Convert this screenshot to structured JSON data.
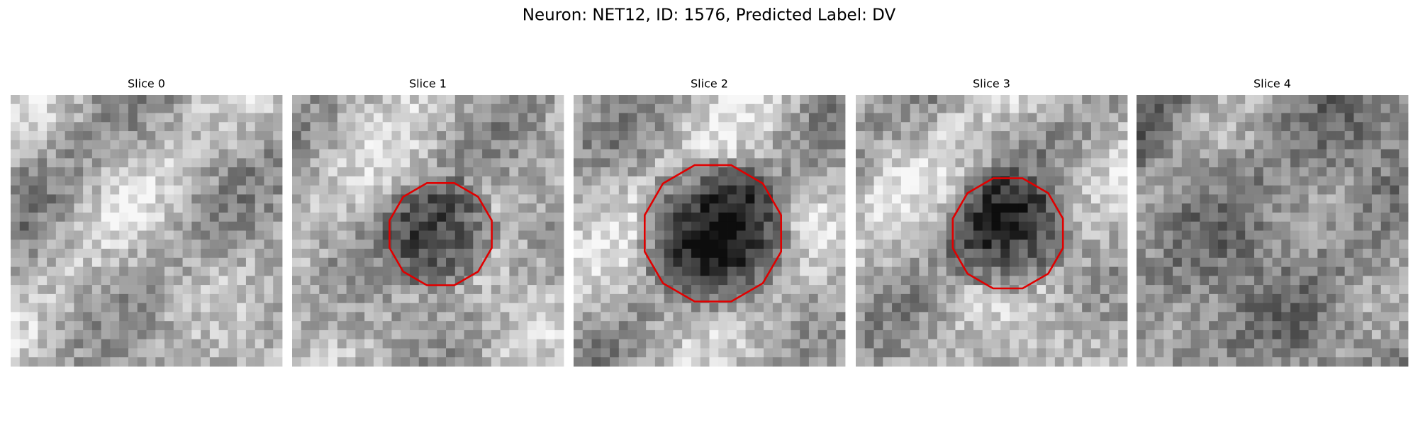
{
  "figure": {
    "title": "Neuron: NET12, ID: 1576, Predicted Label: DV",
    "panels": [
      {
        "title": "Slice 0"
      },
      {
        "title": "Slice 1"
      },
      {
        "title": "Slice 2"
      },
      {
        "title": "Slice 3"
      },
      {
        "title": "Slice 4"
      }
    ]
  }
}
